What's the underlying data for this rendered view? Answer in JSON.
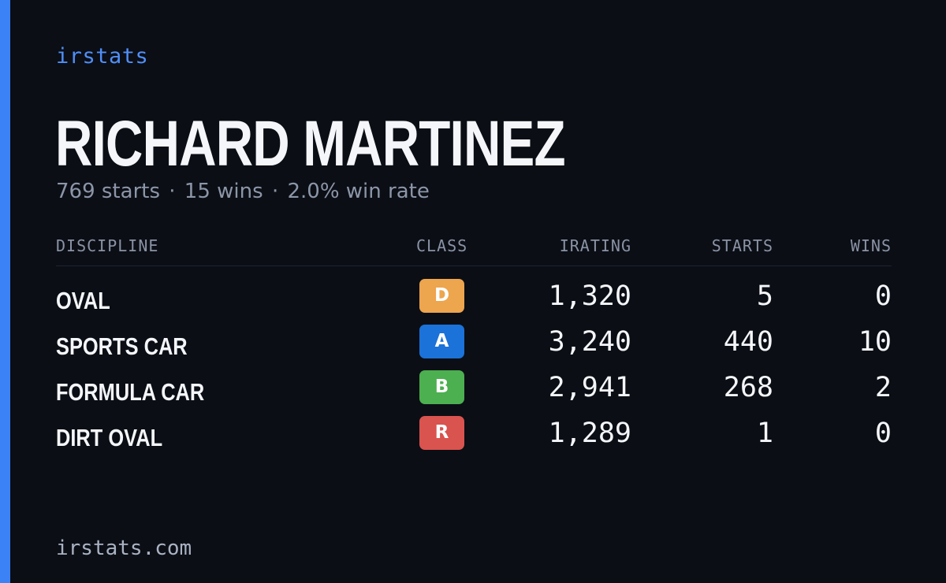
{
  "brand": "irstats",
  "player": {
    "name": "RICHARD MARTINEZ",
    "starts_text": "769 starts",
    "wins_text": "15 wins",
    "win_rate_text": "2.0% win rate",
    "separator": "·"
  },
  "table": {
    "headers": {
      "discipline": "DISCIPLINE",
      "class": "CLASS",
      "irating": "IRATING",
      "starts": "STARTS",
      "wins": "WINS"
    },
    "rows": [
      {
        "discipline": "OVAL",
        "class": "D",
        "class_color": "#eda54e",
        "irating": "1,320",
        "starts": "5",
        "wins": "0"
      },
      {
        "discipline": "SPORTS CAR",
        "class": "A",
        "class_color": "#1b72d8",
        "irating": "3,240",
        "starts": "440",
        "wins": "10"
      },
      {
        "discipline": "FORMULA CAR",
        "class": "B",
        "class_color": "#4caf50",
        "irating": "2,941",
        "starts": "268",
        "wins": "2"
      },
      {
        "discipline": "DIRT OVAL",
        "class": "R",
        "class_color": "#d9534f",
        "irating": "1,289",
        "starts": "1",
        "wins": "0"
      }
    ]
  },
  "footer": "irstats.com",
  "colors": {
    "background": "#0b0e15",
    "accent": "#3b82f6",
    "brand_text": "#4f8ff7"
  }
}
